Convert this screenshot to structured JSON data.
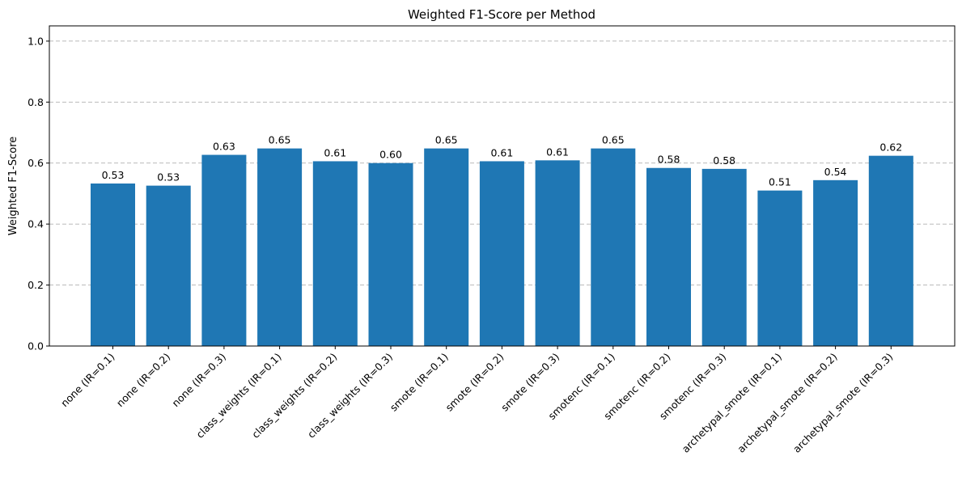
{
  "chart_data": {
    "type": "bar",
    "title": "Weighted F1-Score per Method",
    "xlabel": "",
    "ylabel": "Weighted F1-Score",
    "ylim": [
      0,
      1.05
    ],
    "yticks": [
      "0.0",
      "0.2",
      "0.4",
      "0.6",
      "0.8",
      "1.0"
    ],
    "grid": "y",
    "bar_color": "#1f77b4",
    "categories": [
      "none (IR=0.1)",
      "none (IR=0.2)",
      "none (IR=0.3)",
      "class_weights (IR=0.1)",
      "class_weights (IR=0.2)",
      "class_weights (IR=0.3)",
      "smote (IR=0.1)",
      "smote (IR=0.2)",
      "smote (IR=0.3)",
      "smotenc (IR=0.1)",
      "smotenc (IR=0.2)",
      "smotenc (IR=0.3)",
      "archetypal_smote (IR=0.1)",
      "archetypal_smote (IR=0.2)",
      "archetypal_smote (IR=0.3)"
    ],
    "values": [
      0.533,
      0.526,
      0.627,
      0.648,
      0.606,
      0.6,
      0.648,
      0.606,
      0.609,
      0.648,
      0.584,
      0.581,
      0.51,
      0.544,
      0.624
    ],
    "value_labels": [
      "0.53",
      "0.53",
      "0.63",
      "0.65",
      "0.61",
      "0.60",
      "0.65",
      "0.61",
      "0.61",
      "0.65",
      "0.58",
      "0.58",
      "0.51",
      "0.54",
      "0.62"
    ]
  }
}
